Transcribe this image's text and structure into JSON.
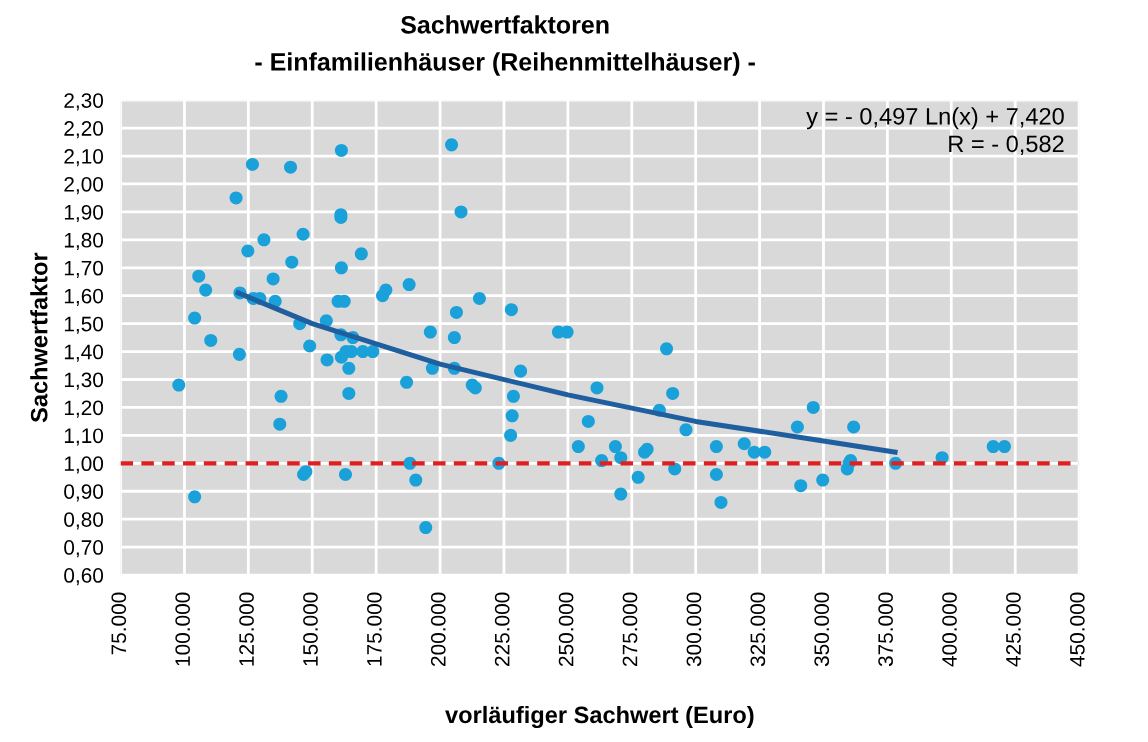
{
  "chart_data": {
    "type": "scatter",
    "title": "Sachwertfaktoren",
    "subtitle": "- Einfamilienhäuser (Reihenmittelhäuser) -",
    "xlabel": "vorläufiger Sachwert (Euro)",
    "ylabel": "Sachwertfaktor",
    "annotations": [
      "y = - 0,497 Ln(x) + 7,420",
      "R = - 0,582"
    ],
    "series": [
      {
        "color": "#1ba1d9",
        "marker": "circle",
        "x": [
          97800,
          104000,
          105600,
          108300,
          110300,
          120200,
          121500,
          121700,
          124800,
          126600,
          126900,
          129500,
          131100,
          134700,
          135500,
          137800,
          137300,
          141500,
          142000,
          145100,
          146400,
          149000,
          146600,
          147500,
          155500,
          155800,
          161400,
          161200,
          161200,
          161400,
          160100,
          162500,
          161200,
          161400,
          163200,
          165900,
          165300,
          164300,
          164300,
          163000,
          169200,
          169800,
          173700,
          177500,
          178800,
          187900,
          186900,
          188200,
          190500,
          196200,
          197000,
          204500,
          208200,
          206400,
          205600,
          205600,
          212600,
          213800,
          215400,
          194400,
          104000,
          223000,
          227900,
          228700,
          228200,
          227600,
          231500,
          246300,
          249700,
          254100,
          258000,
          261400,
          263200,
          268600,
          270700,
          270700,
          277500,
          280000,
          281000,
          285800,
          288600,
          291000,
          291800,
          296200,
          308100,
          308100,
          309900,
          319000,
          322900,
          327000,
          339800,
          341100,
          346000,
          349700,
          359300,
          360000,
          360600,
          361800,
          378200,
          396400,
          416400,
          420800
        ],
        "values": [
          1.28,
          1.52,
          1.67,
          1.62,
          1.44,
          1.95,
          1.39,
          1.61,
          1.76,
          2.07,
          1.59,
          1.59,
          1.8,
          1.66,
          1.58,
          1.24,
          1.14,
          2.06,
          1.72,
          1.5,
          1.82,
          1.42,
          0.96,
          0.97,
          1.51,
          1.37,
          2.12,
          1.89,
          1.88,
          1.7,
          1.58,
          1.58,
          1.46,
          1.38,
          1.4,
          1.45,
          1.4,
          1.34,
          1.25,
          0.96,
          1.75,
          1.4,
          1.4,
          1.6,
          1.62,
          1.64,
          1.29,
          1.0,
          0.94,
          1.47,
          1.34,
          2.14,
          1.9,
          1.54,
          1.45,
          1.34,
          1.28,
          1.27,
          1.59,
          0.77,
          0.88,
          1.0,
          1.55,
          1.24,
          1.17,
          1.1,
          1.33,
          1.47,
          1.47,
          1.06,
          1.15,
          1.27,
          1.01,
          1.06,
          1.02,
          0.89,
          0.95,
          1.04,
          1.05,
          1.19,
          1.41,
          1.25,
          0.98,
          1.12,
          1.06,
          0.96,
          0.86,
          1.07,
          1.04,
          1.04,
          1.13,
          0.92,
          1.2,
          0.94,
          0.98,
          1.0,
          1.01,
          1.13,
          1.0,
          1.02,
          1.06,
          1.06
        ]
      },
      {
        "type": "line",
        "color": "#1f5fa0",
        "marker": "none",
        "line_style": "solid",
        "x": [
          121000,
          150000,
          200000,
          250000,
          300000,
          350000,
          378000
        ],
        "values": [
          1.61,
          1.5,
          1.355,
          1.245,
          1.15,
          1.08,
          1.04
        ]
      }
    ],
    "ref_lines": [
      {
        "axis": "y",
        "value": 1.0,
        "label": null,
        "color": "#e02020",
        "line_style": "dashed"
      }
    ],
    "xlim": [
      75000,
      450000
    ],
    "xticks": [
      {
        "value": 75000,
        "label": "75.000"
      },
      {
        "value": 100000,
        "label": "100.000"
      },
      {
        "value": 125000,
        "label": "125.000"
      },
      {
        "value": 150000,
        "label": "150.000"
      },
      {
        "value": 175000,
        "label": "175.000"
      },
      {
        "value": 200000,
        "label": "200.000"
      },
      {
        "value": 225000,
        "label": "225.000"
      },
      {
        "value": 250000,
        "label": "250.000"
      },
      {
        "value": 275000,
        "label": "275.000"
      },
      {
        "value": 300000,
        "label": "300.000"
      },
      {
        "value": 325000,
        "label": "325.000"
      },
      {
        "value": 350000,
        "label": "350.000"
      },
      {
        "value": 375000,
        "label": "375.000"
      },
      {
        "value": 400000,
        "label": "400.000"
      },
      {
        "value": 425000,
        "label": "425.000"
      },
      {
        "value": 450000,
        "label": "450.000"
      }
    ],
    "ylim": [
      0.6,
      2.3
    ],
    "yticks": [
      {
        "value": 0.6,
        "label": "0,60"
      },
      {
        "value": 0.7,
        "label": "0,70"
      },
      {
        "value": 0.8,
        "label": "0,80"
      },
      {
        "value": 0.9,
        "label": "0,90"
      },
      {
        "value": 1.0,
        "label": "1,00"
      },
      {
        "value": 1.1,
        "label": "1,10"
      },
      {
        "value": 1.2,
        "label": "1,20"
      },
      {
        "value": 1.3,
        "label": "1,30"
      },
      {
        "value": 1.4,
        "label": "1,40"
      },
      {
        "value": 1.5,
        "label": "1,50"
      },
      {
        "value": 1.6,
        "label": "1,60"
      },
      {
        "value": 1.7,
        "label": "1,70"
      },
      {
        "value": 1.8,
        "label": "1,80"
      },
      {
        "value": 1.9,
        "label": "1,90"
      },
      {
        "value": 2.0,
        "label": "2,00"
      },
      {
        "value": 2.1,
        "label": "2,10"
      },
      {
        "value": 2.2,
        "label": "2,20"
      },
      {
        "value": 2.3,
        "label": "2,30"
      }
    ],
    "grid": true,
    "legend": false
  }
}
